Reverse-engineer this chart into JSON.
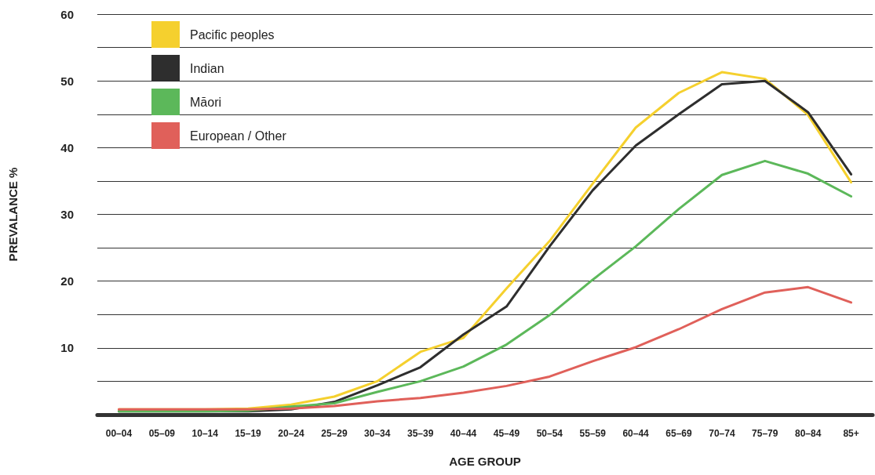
{
  "chart_data": {
    "type": "line",
    "xlabel": "AGE GROUP",
    "ylabel": "PREVALANCE %",
    "categories": [
      "00–04",
      "05–09",
      "10–14",
      "15–19",
      "20–24",
      "25–29",
      "30–34",
      "35–39",
      "40–44",
      "45–49",
      "50–54",
      "55–59",
      "60–44",
      "65–69",
      "70–74",
      "75–79",
      "80–84",
      "85+"
    ],
    "series": [
      {
        "name": "Pacific peoples",
        "color": "#f5d02e",
        "values": [
          0.8,
          0.8,
          0.8,
          0.9,
          1.5,
          2.7,
          5.0,
          9.4,
          11.5,
          18.9,
          26,
          34.6,
          43,
          48.2,
          51.3,
          50.3,
          44.9,
          34.8
        ]
      },
      {
        "name": "Indian",
        "color": "#2e2e2e",
        "values": [
          0.5,
          0.5,
          0.5,
          0.5,
          0.8,
          1.9,
          4.4,
          7.1,
          12,
          16.2,
          25.2,
          33.6,
          40.3,
          45,
          49.5,
          50,
          45.3,
          36
        ]
      },
      {
        "name": "Māori",
        "color": "#5cb85a",
        "values": [
          0.5,
          0.5,
          0.5,
          0.6,
          1.2,
          1.7,
          3.4,
          5.0,
          7.2,
          10.5,
          14.9,
          20.2,
          25.2,
          30.8,
          35.9,
          38,
          36.1,
          32.7
        ]
      },
      {
        "name": "European / Other",
        "color": "#e0605a",
        "values": [
          0.8,
          0.8,
          0.8,
          0.8,
          0.9,
          1.3,
          2.0,
          2.5,
          3.3,
          4.3,
          5.7,
          8,
          10.1,
          12.8,
          15.8,
          18.3,
          19.1,
          16.8
        ]
      }
    ],
    "ylim": [
      0,
      60
    ],
    "yticks": [
      {
        "value": 0,
        "label": null
      },
      {
        "value": 5,
        "label": null
      },
      10,
      {
        "value": 15,
        "label": null
      },
      20,
      {
        "value": 25,
        "label": null
      },
      30,
      {
        "value": 35,
        "label": null
      },
      40,
      {
        "value": 45,
        "label": null
      },
      50,
      {
        "value": 55,
        "label": null
      },
      60
    ],
    "grid": "y",
    "legend": "top left",
    "marker": "none",
    "line_style": "solid"
  }
}
